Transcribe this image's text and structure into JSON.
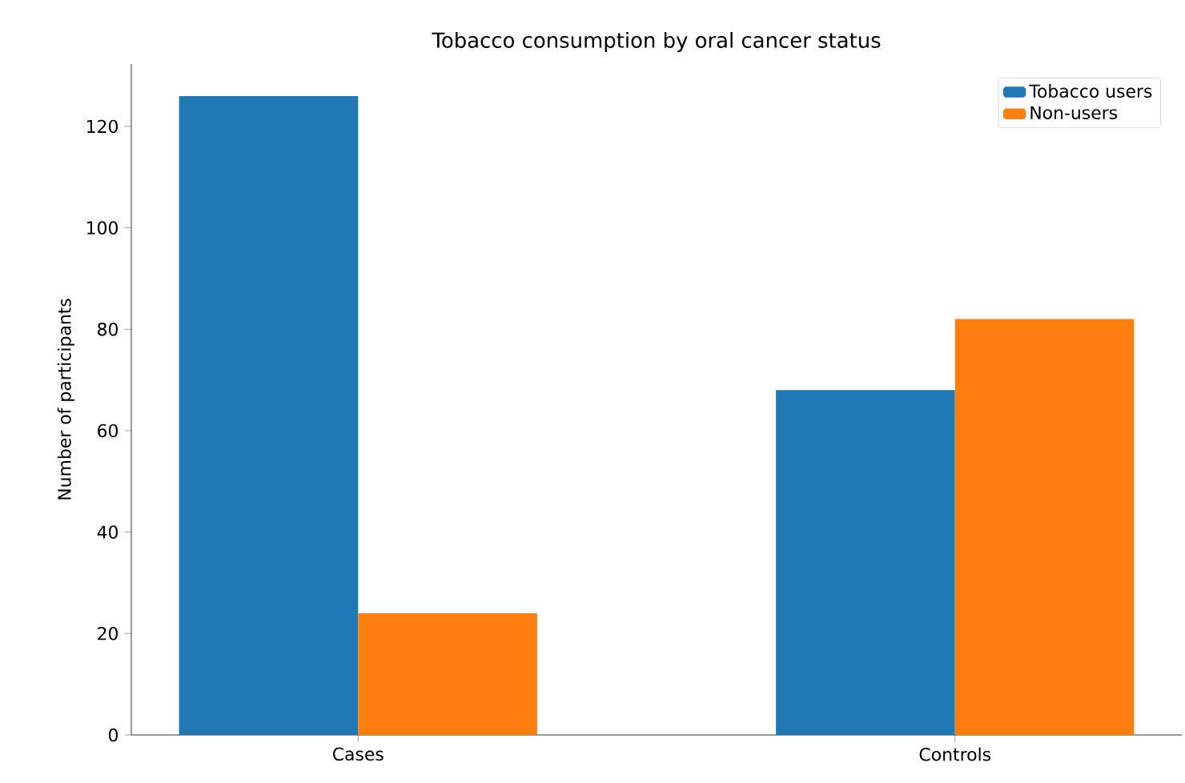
{
  "chart_data": {
    "type": "bar",
    "title": "Tobacco consumption by oral cancer status",
    "ylabel": "Number of participants",
    "categories": [
      "Cases",
      "Controls"
    ],
    "series": [
      {
        "name": "Tobacco users",
        "color": "#1f77b4",
        "values": [
          126,
          68
        ]
      },
      {
        "name": "Non-users",
        "color": "#ff7f0e",
        "values": [
          24,
          82
        ]
      }
    ],
    "ylim": [
      0,
      132.3
    ],
    "yticks": [
      0,
      20,
      40,
      60,
      80,
      100,
      120
    ],
    "legend": "top right"
  }
}
